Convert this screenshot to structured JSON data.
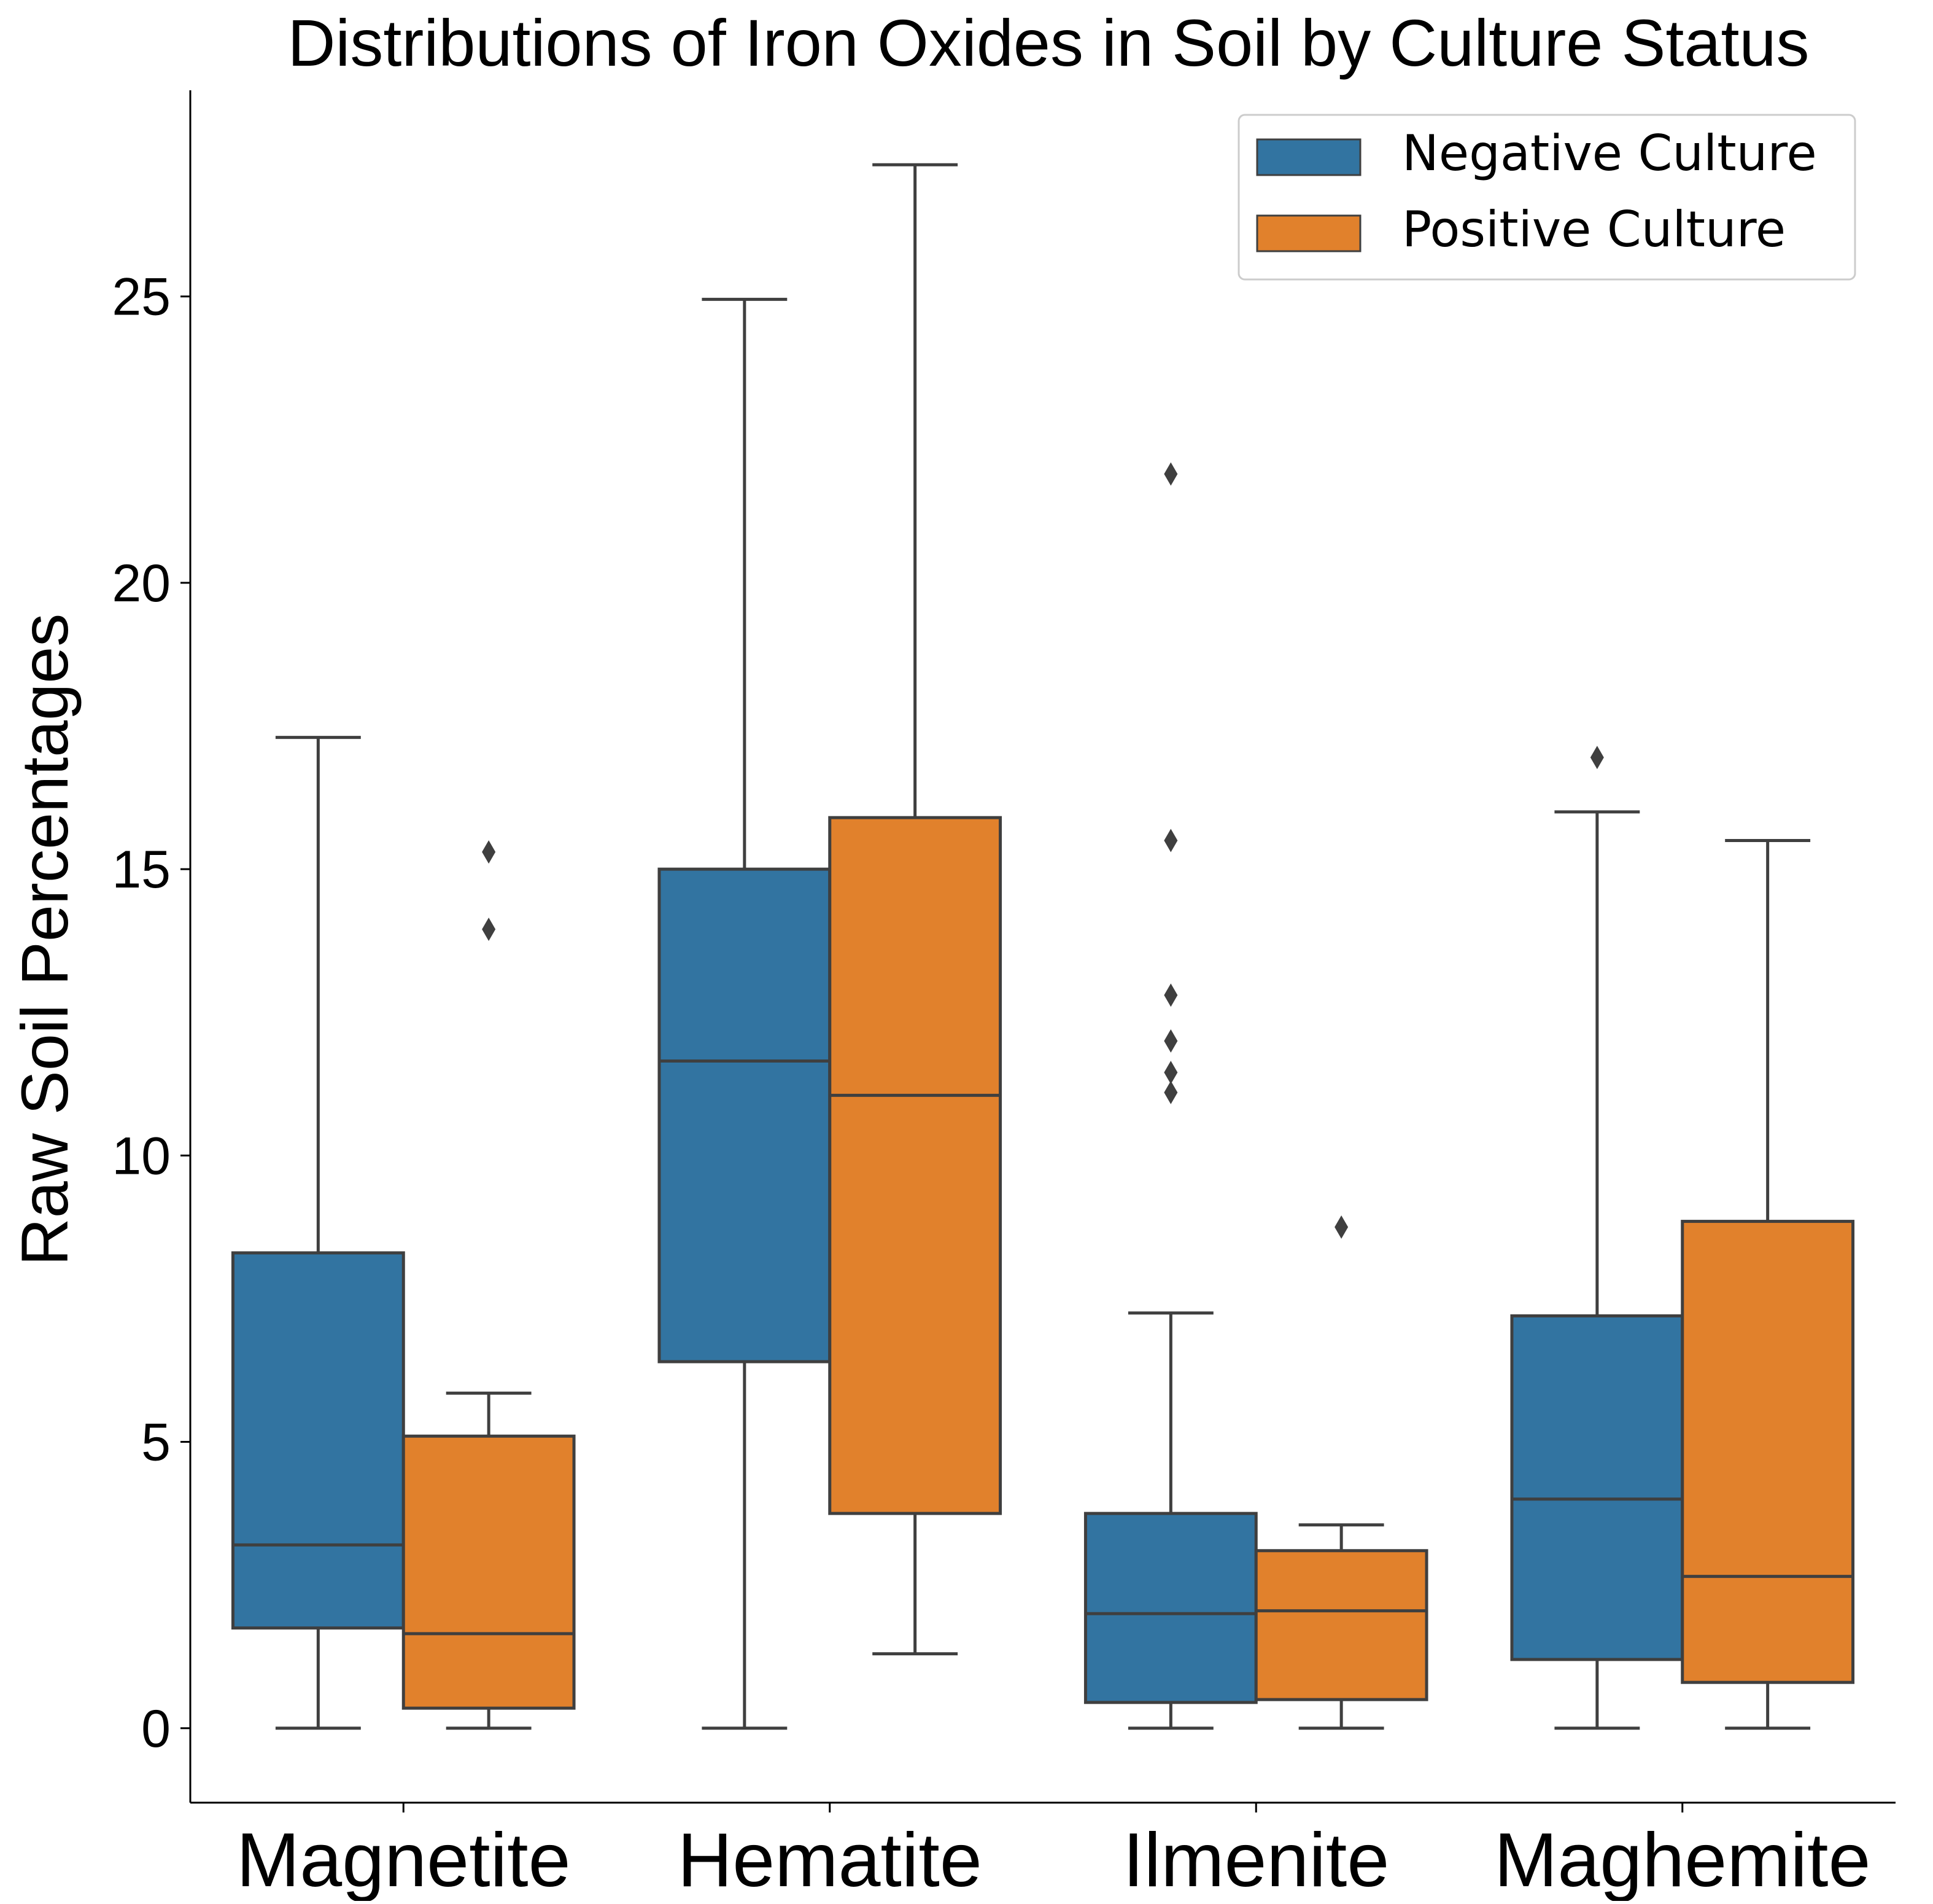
{
  "chart_data": {
    "type": "box",
    "title": "Distributions of Iron Oxides in Soil by Culture Status",
    "xlabel": "",
    "ylabel": "Raw Soil Percentages",
    "ylim": [
      -1.3,
      28.6
    ],
    "yticks": [
      0,
      5,
      10,
      15,
      20,
      25
    ],
    "grid": false,
    "legend_placement": "top-right",
    "categories": [
      "Magnetite",
      "Hematite",
      "Ilmenite",
      "Maghemite"
    ],
    "series": [
      {
        "name": "Negative Culture",
        "color": "#3274a1",
        "boxes": [
          {
            "whisker_low": 0.0,
            "q1": 1.75,
            "median": 3.2,
            "q3": 8.3,
            "whisker_high": 17.3,
            "outliers": []
          },
          {
            "whisker_low": 0.0,
            "q1": 6.4,
            "median": 11.65,
            "q3": 15.0,
            "whisker_high": 24.95,
            "outliers": []
          },
          {
            "whisker_low": 0.0,
            "q1": 0.45,
            "median": 2.0,
            "q3": 3.75,
            "whisker_high": 7.25,
            "outliers": [
              11.1,
              11.45,
              12.0,
              12.8,
              15.5,
              21.9
            ]
          },
          {
            "whisker_low": 0.0,
            "q1": 1.2,
            "median": 4.0,
            "q3": 7.2,
            "whisker_high": 16.0,
            "outliers": [
              16.95
            ]
          }
        ]
      },
      {
        "name": "Positive Culture",
        "color": "#e1812c",
        "boxes": [
          {
            "whisker_low": 0.0,
            "q1": 0.35,
            "median": 1.65,
            "q3": 5.1,
            "whisker_high": 5.85,
            "outliers": [
              13.95,
              15.3
            ]
          },
          {
            "whisker_low": 1.3,
            "q1": 3.75,
            "median": 11.05,
            "q3": 15.9,
            "whisker_high": 27.3,
            "outliers": []
          },
          {
            "whisker_low": 0.0,
            "q1": 0.5,
            "median": 2.05,
            "q3": 3.1,
            "whisker_high": 3.55,
            "outliers": [
              8.75
            ]
          },
          {
            "whisker_low": 0.0,
            "q1": 0.8,
            "median": 2.65,
            "q3": 8.85,
            "whisker_high": 15.5,
            "outliers": []
          }
        ]
      }
    ]
  }
}
